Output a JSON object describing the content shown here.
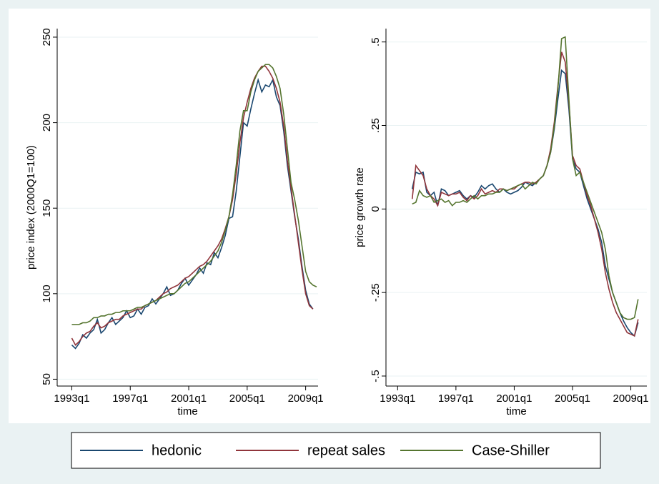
{
  "chart_data": [
    {
      "type": "line",
      "ylabel": "price index (2000Q1=100)",
      "xlabel": "time",
      "x": [
        1993,
        1993.25,
        1993.5,
        1993.75,
        1994,
        1994.25,
        1994.5,
        1994.75,
        1995,
        1995.25,
        1995.5,
        1995.75,
        1996,
        1996.25,
        1996.5,
        1996.75,
        1997,
        1997.25,
        1997.5,
        1997.75,
        1998,
        1998.25,
        1998.5,
        1998.75,
        1999,
        1999.25,
        1999.5,
        1999.75,
        2000,
        2000.25,
        2000.5,
        2000.75,
        2001,
        2001.25,
        2001.5,
        2001.75,
        2002,
        2002.25,
        2002.5,
        2002.75,
        2003,
        2003.25,
        2003.5,
        2003.75,
        2004,
        2004.25,
        2004.5,
        2004.75,
        2005,
        2005.25,
        2005.5,
        2005.75,
        2006,
        2006.25,
        2006.5,
        2006.75,
        2007,
        2007.25,
        2007.5,
        2007.75,
        2008,
        2008.25,
        2008.5,
        2008.75,
        2009,
        2009.25,
        2009.5,
        2009.75
      ],
      "series": [
        {
          "name": "hedonic",
          "color": "#1a476f",
          "values": [
            70,
            68,
            71,
            76,
            74,
            77,
            79,
            85,
            77,
            79,
            83,
            86,
            82,
            84,
            86,
            90,
            86,
            87,
            91,
            88,
            92,
            93,
            97,
            94,
            97,
            100,
            104,
            99,
            100,
            102,
            106,
            109,
            105,
            108,
            111,
            115,
            112,
            118,
            117,
            124,
            121,
            127,
            134,
            144,
            145,
            160,
            180,
            200,
            198,
            208,
            217,
            225,
            218,
            222,
            221,
            225,
            215,
            210,
            195,
            175,
            160,
            145,
            132,
            116,
            102,
            94,
            91,
            null
          ]
        },
        {
          "name": "repeat sales",
          "color": "#90353b",
          "values": [
            74,
            70,
            72,
            75,
            77,
            78,
            81,
            83,
            80,
            81,
            83,
            84,
            85,
            85,
            87,
            88,
            89,
            90,
            91,
            91,
            93,
            94,
            95,
            96,
            98,
            100,
            101,
            103,
            104,
            105,
            107,
            109,
            110,
            112,
            114,
            116,
            117,
            119,
            122,
            125,
            128,
            132,
            138,
            145,
            155,
            170,
            188,
            203,
            212,
            220,
            226,
            230,
            233,
            233,
            230,
            226,
            220,
            212,
            198,
            178,
            162,
            146,
            130,
            114,
            100,
            93,
            91,
            null
          ]
        },
        {
          "name": "Case-Shiller",
          "color": "#55752f",
          "values": [
            82,
            82,
            82,
            83,
            83,
            84,
            86,
            86,
            87,
            87,
            88,
            88,
            89,
            89,
            90,
            90,
            90,
            91,
            92,
            92,
            93,
            94,
            95,
            96,
            97,
            98,
            99,
            100,
            100,
            102,
            104,
            106,
            107,
            109,
            111,
            113,
            115,
            117,
            119,
            122,
            125,
            130,
            137,
            145,
            158,
            175,
            195,
            207,
            207,
            218,
            225,
            230,
            232,
            234,
            234,
            232,
            227,
            220,
            205,
            185,
            165,
            155,
            143,
            128,
            113,
            107,
            105,
            104
          ]
        }
      ],
      "xlim": [
        1992,
        2009.85
      ],
      "ylim": [
        46,
        255
      ],
      "xticks": [
        {
          "value": 1993,
          "label": "1993q1"
        },
        {
          "value": 1997,
          "label": "1997q1"
        },
        {
          "value": 2001,
          "label": "2001q1"
        },
        {
          "value": 2005,
          "label": "2005q1"
        },
        {
          "value": 2009,
          "label": "2009q1"
        }
      ],
      "yticks": [
        50,
        100,
        150,
        200,
        250
      ],
      "grid": true
    },
    {
      "type": "line",
      "ylabel": "price growth rate",
      "xlabel": "time",
      "x": [
        1994,
        1994.25,
        1994.5,
        1994.75,
        1995,
        1995.25,
        1995.5,
        1995.75,
        1996,
        1996.25,
        1996.5,
        1996.75,
        1997,
        1997.25,
        1997.5,
        1997.75,
        1998,
        1998.25,
        1998.5,
        1998.75,
        1999,
        1999.25,
        1999.5,
        1999.75,
        2000,
        2000.25,
        2000.5,
        2000.75,
        2001,
        2001.25,
        2001.5,
        2001.75,
        2002,
        2002.25,
        2002.5,
        2002.75,
        2003,
        2003.25,
        2003.5,
        2003.75,
        2004,
        2004.25,
        2004.5,
        2004.75,
        2005,
        2005.25,
        2005.5,
        2005.75,
        2006,
        2006.25,
        2006.5,
        2006.75,
        2007,
        2007.25,
        2007.5,
        2007.75,
        2008,
        2008.25,
        2008.5,
        2008.75,
        2009,
        2009.25,
        2009.5
      ],
      "series": [
        {
          "name": "hedonic",
          "color": "#1a476f",
          "values": [
            0.06,
            0.11,
            0.105,
            0.11,
            0.05,
            0.04,
            0.05,
            0.01,
            0.06,
            0.055,
            0.04,
            0.045,
            0.05,
            0.055,
            0.04,
            0.03,
            0.04,
            0.035,
            0.05,
            0.07,
            0.06,
            0.07,
            0.075,
            0.06,
            0.05,
            0.06,
            0.05,
            0.045,
            0.05,
            0.055,
            0.065,
            0.08,
            0.075,
            0.07,
            0.08,
            0.09,
            0.1,
            0.13,
            0.17,
            0.24,
            0.33,
            0.415,
            0.405,
            0.3,
            0.15,
            0.12,
            0.11,
            0.07,
            0.03,
            0,
            -0.03,
            -0.06,
            -0.1,
            -0.17,
            -0.21,
            -0.25,
            -0.28,
            -0.31,
            -0.335,
            -0.355,
            -0.37,
            -0.38,
            -0.34
          ]
        },
        {
          "name": "repeat sales",
          "color": "#90353b",
          "values": [
            0.03,
            0.13,
            0.115,
            0.1,
            0.06,
            0.04,
            0.03,
            0.01,
            0.05,
            0.045,
            0.04,
            0.045,
            0.045,
            0.05,
            0.035,
            0.025,
            0.04,
            0.03,
            0.04,
            0.06,
            0.045,
            0.05,
            0.055,
            0.05,
            0.06,
            0.06,
            0.055,
            0.06,
            0.06,
            0.07,
            0.075,
            0.08,
            0.08,
            0.075,
            0.08,
            0.09,
            0.1,
            0.13,
            0.18,
            0.26,
            0.37,
            0.47,
            0.44,
            0.32,
            0.16,
            0.13,
            0.12,
            0.08,
            0.04,
            0.01,
            -0.03,
            -0.07,
            -0.12,
            -0.19,
            -0.24,
            -0.28,
            -0.31,
            -0.33,
            -0.35,
            -0.37,
            -0.375,
            -0.38,
            -0.33
          ]
        },
        {
          "name": "Case-Shiller",
          "color": "#55752f",
          "values": [
            0.015,
            0.02,
            0.055,
            0.04,
            0.035,
            0.04,
            0.02,
            0.025,
            0.03,
            0.02,
            0.025,
            0.01,
            0.02,
            0.02,
            0.025,
            0.02,
            0.03,
            0.04,
            0.03,
            0.04,
            0.04,
            0.045,
            0.045,
            0.05,
            0.05,
            0.06,
            0.055,
            0.06,
            0.065,
            0.07,
            0.075,
            0.06,
            0.07,
            0.08,
            0.075,
            0.09,
            0.1,
            0.13,
            0.17,
            0.25,
            0.36,
            0.51,
            0.515,
            0.33,
            0.15,
            0.1,
            0.11,
            0.08,
            0.05,
            0.02,
            -0.01,
            -0.04,
            -0.07,
            -0.12,
            -0.2,
            -0.25,
            -0.28,
            -0.31,
            -0.325,
            -0.33,
            -0.33,
            -0.325,
            -0.27
          ]
        }
      ],
      "xlim": [
        1992.2,
        2010.1
      ],
      "ylim": [
        -0.53,
        0.54
      ],
      "xticks": [
        {
          "value": 1993,
          "label": "1993q1"
        },
        {
          "value": 1997,
          "label": "1997q1"
        },
        {
          "value": 2001,
          "label": "2001q1"
        },
        {
          "value": 2005,
          "label": "2005q1"
        },
        {
          "value": 2009,
          "label": "2009q1"
        }
      ],
      "yticks": [
        {
          "value": -0.5,
          "label": "-.5"
        },
        {
          "value": -0.25,
          "label": "-.25"
        },
        0,
        {
          "value": 0.25,
          "label": ".25"
        },
        {
          "value": 0.5,
          "label": ".5"
        }
      ],
      "grid": true
    }
  ]
}
